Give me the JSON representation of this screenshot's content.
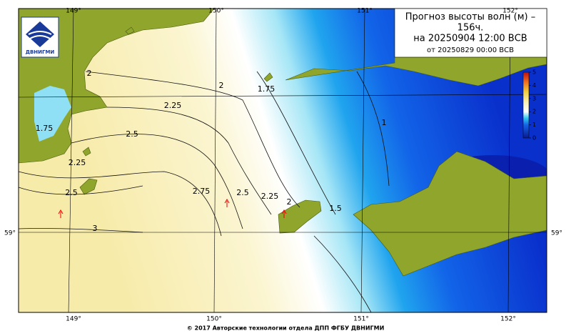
{
  "header": {
    "title_lines": [
      "Прогноз высоты волн (м) –",
      "156ч.",
      "на 20250904 12:00 ВСВ",
      "от 20250829 00:00 ВСВ"
    ]
  },
  "logo": {
    "text": "ДВНИГМИ"
  },
  "lon_labels": {
    "top": [
      "149°",
      "150°",
      "151°",
      "152°"
    ],
    "bottom": [
      "149°",
      "150°",
      "151°",
      "152°"
    ]
  },
  "lat_labels": {
    "left": "59°",
    "right": "59°"
  },
  "colorbar": {
    "ticks": [
      0,
      1,
      2,
      3,
      4,
      5
    ]
  },
  "contour_labels": [
    "2",
    "1.75",
    "2",
    "1.75",
    "2.25",
    "2.5",
    "2.25",
    "2.5",
    "2.75",
    "2.5",
    "2.25",
    "2",
    "1.5",
    "1",
    "3"
  ],
  "footer": "© 2017 Авторские технологии отдела ДПП ФГБУ ДВНИГМИ"
}
